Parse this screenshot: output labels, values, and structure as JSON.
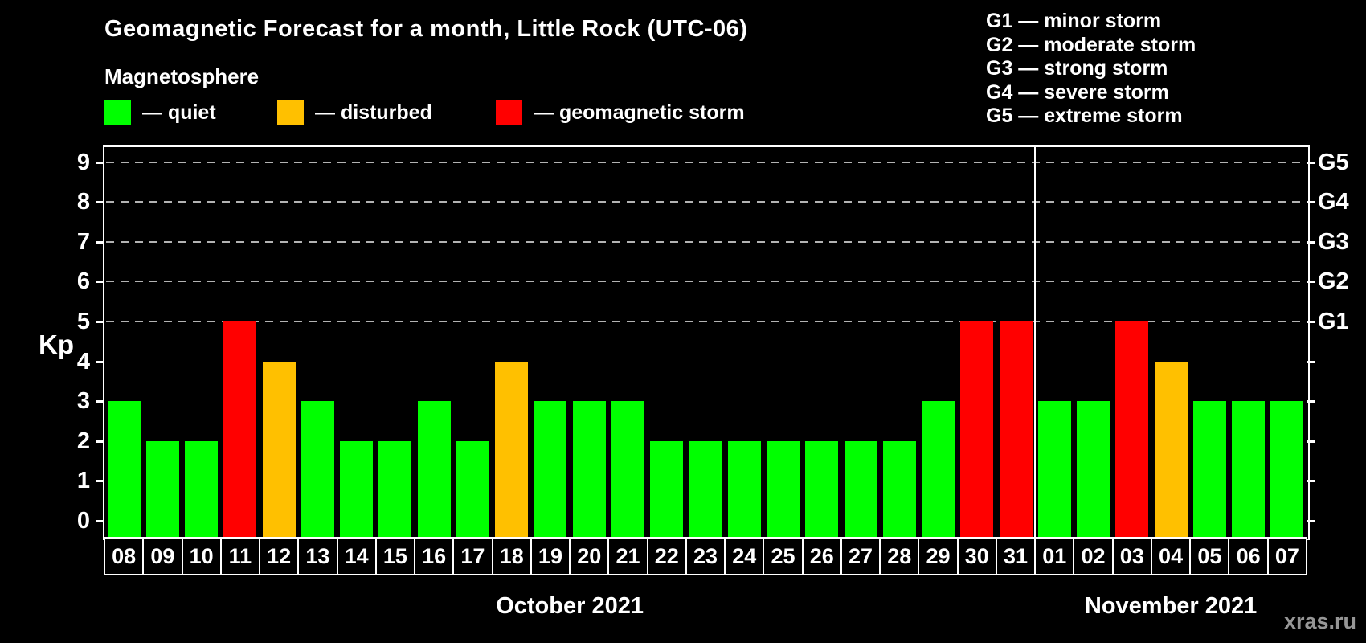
{
  "header": {
    "title": "Geomagnetic Forecast for a month, Little Rock (UTC-06)",
    "subtitle": "Magnetosphere"
  },
  "legend": {
    "items": [
      {
        "status": "quiet",
        "label": "— quiet"
      },
      {
        "status": "disturbed",
        "label": "— disturbed"
      },
      {
        "status": "storm",
        "label": "— geomagnetic storm"
      }
    ]
  },
  "gscale_legend": {
    "items": [
      "G1 — minor storm",
      "G2 — moderate storm",
      "G3 — strong storm",
      "G4 — severe storm",
      "G5 — extreme storm"
    ]
  },
  "colors": {
    "quiet": "#00ff00",
    "disturbed": "#ffc000",
    "storm": "#ff0000",
    "grid": "#b3b3b3",
    "axis": "#ffffff",
    "watermark": "#969696"
  },
  "watermark": "xras.ru",
  "chart_data": {
    "type": "bar",
    "title": "Geomagnetic Forecast for a month, Little Rock (UTC-06)",
    "xlabel": "",
    "ylabel": "Kp",
    "ylim": [
      -0.4,
      9.4
    ],
    "yticks": [
      0,
      1,
      2,
      3,
      4,
      5,
      6,
      7,
      8,
      9
    ],
    "grid_kp_levels": [
      5,
      6,
      7,
      8,
      9
    ],
    "right_axis_labels": [
      {
        "kp": 5,
        "label": "G1"
      },
      {
        "kp": 6,
        "label": "G2"
      },
      {
        "kp": 7,
        "label": "G3"
      },
      {
        "kp": 8,
        "label": "G4"
      },
      {
        "kp": 9,
        "label": "G5"
      }
    ],
    "categories": [
      "08",
      "09",
      "10",
      "11",
      "12",
      "13",
      "14",
      "15",
      "16",
      "17",
      "18",
      "19",
      "20",
      "21",
      "22",
      "23",
      "24",
      "25",
      "26",
      "27",
      "28",
      "29",
      "30",
      "31",
      "01",
      "02",
      "03",
      "04",
      "05",
      "06",
      "07"
    ],
    "values": [
      3,
      2,
      2,
      5,
      4,
      3,
      2,
      2,
      3,
      2,
      4,
      3,
      3,
      3,
      2,
      2,
      2,
      2,
      2,
      2,
      2,
      3,
      5,
      5,
      3,
      3,
      5,
      4,
      3,
      3,
      3
    ],
    "statuses": [
      "quiet",
      "quiet",
      "quiet",
      "storm",
      "disturbed",
      "quiet",
      "quiet",
      "quiet",
      "quiet",
      "quiet",
      "disturbed",
      "quiet",
      "quiet",
      "quiet",
      "quiet",
      "quiet",
      "quiet",
      "quiet",
      "quiet",
      "quiet",
      "quiet",
      "quiet",
      "storm",
      "storm",
      "quiet",
      "quiet",
      "storm",
      "disturbed",
      "quiet",
      "quiet",
      "quiet"
    ],
    "months": [
      {
        "label": "October 2021",
        "start": 0,
        "span": 24
      },
      {
        "label": "November 2021",
        "start": 24,
        "span": 7
      }
    ]
  }
}
